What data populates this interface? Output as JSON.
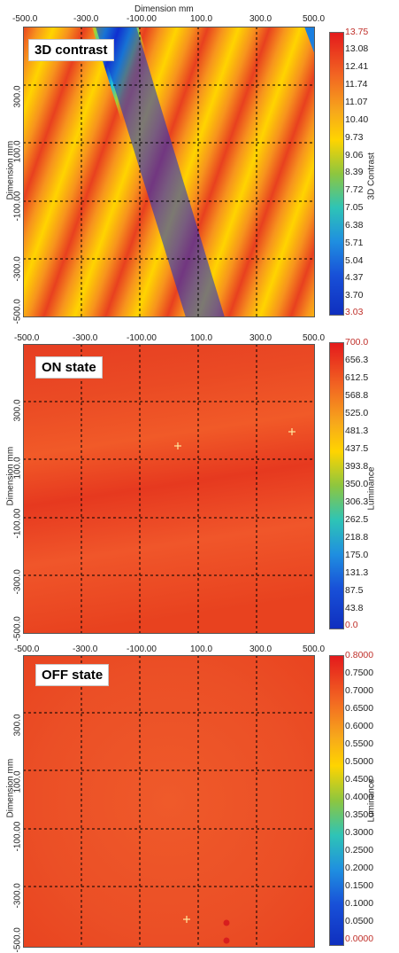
{
  "chart_data": [
    {
      "type": "heatmap",
      "title": "3D contrast",
      "xlabel": "Dimension mm",
      "ylabel": "Dimension mm",
      "colorbar_label": "3D Contrast",
      "x_ticks": [
        "-500.0",
        "-300.0",
        "-100.00",
        "100.0",
        "300.0",
        "500.0"
      ],
      "y_ticks": [
        "300.0",
        "100.0",
        "-100.00",
        "-300.0",
        "-500.0"
      ],
      "xlim": [
        -500,
        500
      ],
      "ylim": [
        -500,
        500
      ],
      "colorbar_ticks": [
        "13.75",
        "13.08",
        "12.41",
        "11.74",
        "11.07",
        "10.40",
        "9.73",
        "9.06",
        "8.39",
        "7.72",
        "7.05",
        "6.38",
        "5.71",
        "5.04",
        "4.37",
        "3.70",
        "3.03"
      ],
      "colorbar_range": [
        3.03,
        13.75
      ],
      "grid": true
    },
    {
      "type": "heatmap",
      "title": "ON state",
      "xlabel": "",
      "ylabel": "Dimension mm",
      "colorbar_label": "Luminance",
      "x_ticks": [
        "-500.0",
        "-300.0",
        "-100.00",
        "100.0",
        "300.0",
        "500.0"
      ],
      "y_ticks": [
        "300.0",
        "100.0",
        "-100.00",
        "-300.0",
        "-500.0"
      ],
      "xlim": [
        -500,
        500
      ],
      "ylim": [
        -500,
        500
      ],
      "colorbar_ticks": [
        "700.0",
        "656.3",
        "612.5",
        "568.8",
        "525.0",
        "481.3",
        "437.5",
        "393.8",
        "350.0",
        "306.3",
        "262.5",
        "218.8",
        "175.0",
        "131.3",
        "87.5",
        "43.8",
        "0.0"
      ],
      "colorbar_range": [
        0,
        700
      ],
      "grid": true,
      "markers": [
        {
          "x": 0,
          "y": 140
        },
        {
          "x": 390,
          "y": 180
        }
      ]
    },
    {
      "type": "heatmap",
      "title": "OFF state",
      "xlabel": "",
      "ylabel": "Dimension mm",
      "colorbar_label": "Luminance",
      "x_ticks": [
        "-500.0",
        "-300.0",
        "-100.00",
        "100.0",
        "300.0",
        "500.0"
      ],
      "y_ticks": [
        "300.0",
        "100.0",
        "-100.00",
        "-300.0",
        "-500.0"
      ],
      "xlim": [
        -500,
        500
      ],
      "ylim": [
        -500,
        500
      ],
      "colorbar_ticks": [
        "0.8000",
        "0.7500",
        "0.7000",
        "0.6500",
        "0.6000",
        "0.5500",
        "0.5000",
        "0.4500",
        "0.4000",
        "0.3500",
        "0.3000",
        "0.2500",
        "0.2000",
        "0.1500",
        "0.1000",
        "0.0500",
        "0.0000"
      ],
      "colorbar_range": [
        0,
        0.8
      ],
      "grid": true,
      "markers": [
        {
          "x": 30,
          "y": -390
        }
      ],
      "dots": [
        {
          "x": 180,
          "y": -400
        },
        {
          "x": 180,
          "y": -460
        }
      ]
    }
  ],
  "colors": {
    "bar_top": "#e41a1c",
    "field_red": "#e8401f",
    "band_yellow": "#ffd400",
    "band_blue": "#1030d0",
    "tick_red_label": "#c0302a"
  }
}
